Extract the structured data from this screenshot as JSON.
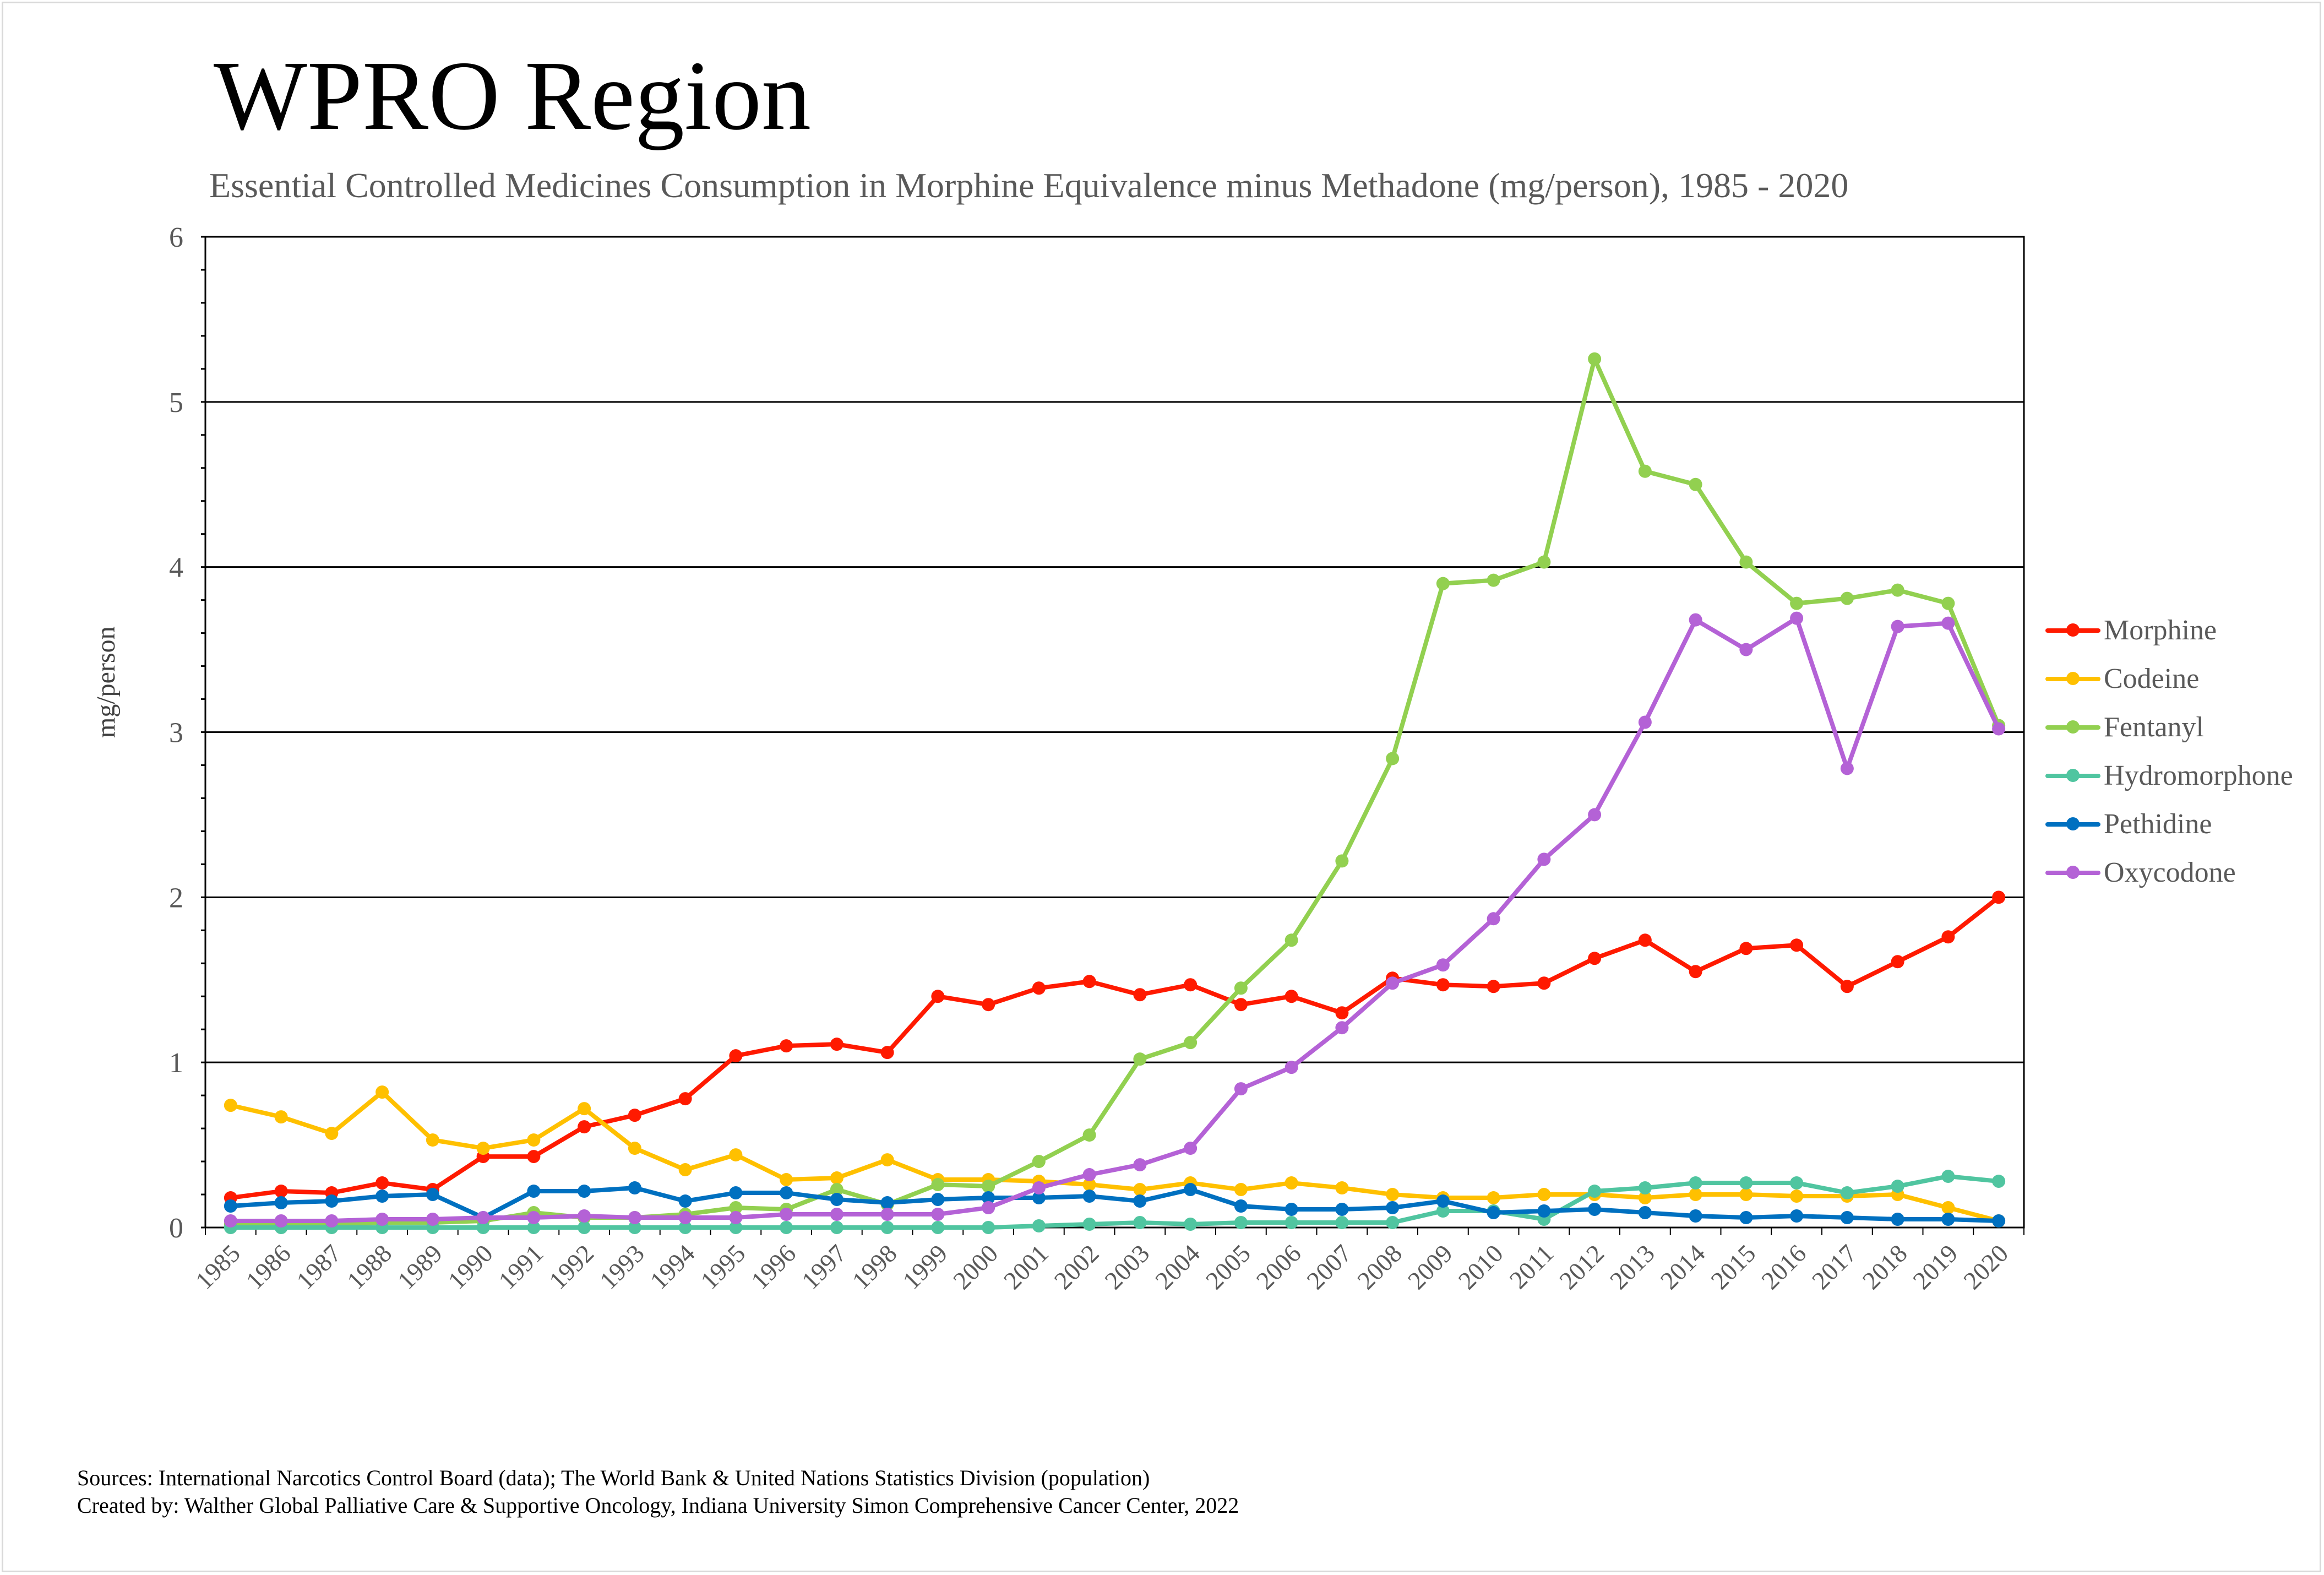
{
  "header": {
    "title": "WPRO Region",
    "subtitle": "Essential Controlled Medicines Consumption in Morphine Equivalence minus Methadone (mg/person), 1985 - 2020"
  },
  "footer": {
    "sources": "Sources: International Narcotics Control Board (data); The World Bank & United Nations Statistics Division (population)",
    "created_by": "Created by: Walther Global Palliative Care & Supportive Oncology, Indiana University Simon Comprehensive Cancer Center, 2022"
  },
  "chart_data": {
    "type": "line",
    "title": "WPRO Region",
    "subtitle": "Essential Controlled Medicines Consumption in Morphine Equivalence minus Methadone (mg/person), 1985 - 2020",
    "xlabel": "",
    "ylabel": "mg/person",
    "ylim": [
      0,
      6
    ],
    "yticks": [
      "0",
      "1",
      "2",
      "3",
      "4",
      "5",
      "6"
    ],
    "grid": true,
    "legend_position": "right",
    "x": [
      "1985",
      "1986",
      "1987",
      "1988",
      "1989",
      "1990",
      "1991",
      "1992",
      "1993",
      "1994",
      "1995",
      "1996",
      "1997",
      "1998",
      "1999",
      "2000",
      "2001",
      "2002",
      "2003",
      "2004",
      "2005",
      "2006",
      "2007",
      "2008",
      "2009",
      "2010",
      "2011",
      "2012",
      "2013",
      "2014",
      "2015",
      "2016",
      "2017",
      "2018",
      "2019",
      "2020"
    ],
    "series": [
      {
        "name": "Morphine",
        "color": "#ff1a00",
        "values": [
          0.18,
          0.22,
          0.21,
          0.27,
          0.23,
          0.43,
          0.43,
          0.61,
          0.68,
          0.78,
          1.04,
          1.1,
          1.11,
          1.06,
          1.4,
          1.35,
          1.45,
          1.49,
          1.41,
          1.47,
          1.35,
          1.4,
          1.3,
          1.51,
          1.47,
          1.46,
          1.48,
          1.63,
          1.74,
          1.55,
          1.69,
          1.71,
          1.46,
          1.61,
          1.76,
          2.0
        ]
      },
      {
        "name": "Codeine",
        "color": "#ffc000",
        "values": [
          0.74,
          0.67,
          0.57,
          0.82,
          0.53,
          0.48,
          0.53,
          0.72,
          0.48,
          0.35,
          0.44,
          0.29,
          0.3,
          0.41,
          0.29,
          0.29,
          0.28,
          0.26,
          0.23,
          0.27,
          0.23,
          0.27,
          0.24,
          0.2,
          0.18,
          0.18,
          0.2,
          0.2,
          0.18,
          0.2,
          0.2,
          0.19,
          0.19,
          0.2,
          0.12,
          0.04
        ]
      },
      {
        "name": "Fentanyl",
        "color": "#92d050",
        "values": [
          0.02,
          0.02,
          0.02,
          0.03,
          0.03,
          0.04,
          0.09,
          0.06,
          0.06,
          0.08,
          0.12,
          0.11,
          0.23,
          0.14,
          0.26,
          0.25,
          0.4,
          0.56,
          1.02,
          1.12,
          1.45,
          1.74,
          2.22,
          2.84,
          3.9,
          3.92,
          4.03,
          5.26,
          4.58,
          4.5,
          4.03,
          3.78,
          3.81,
          3.86,
          3.78,
          3.04
        ]
      },
      {
        "name": "Hydromorphone",
        "color": "#50c5a0",
        "values": [
          0.0,
          0.0,
          0.0,
          0.0,
          0.0,
          0.0,
          0.0,
          0.0,
          0.0,
          0.0,
          0.0,
          0.0,
          0.0,
          0.0,
          0.0,
          0.0,
          0.01,
          0.02,
          0.03,
          0.02,
          0.03,
          0.03,
          0.03,
          0.03,
          0.1,
          0.1,
          0.05,
          0.22,
          0.24,
          0.27,
          0.27,
          0.27,
          0.21,
          0.25,
          0.31,
          0.28
        ]
      },
      {
        "name": "Pethidine",
        "color": "#0070c0",
        "values": [
          0.13,
          0.15,
          0.16,
          0.19,
          0.2,
          0.06,
          0.22,
          0.22,
          0.24,
          0.16,
          0.21,
          0.21,
          0.17,
          0.15,
          0.17,
          0.18,
          0.18,
          0.19,
          0.16,
          0.23,
          0.13,
          0.11,
          0.11,
          0.12,
          0.16,
          0.09,
          0.1,
          0.11,
          0.09,
          0.07,
          0.06,
          0.07,
          0.06,
          0.05,
          0.05,
          0.04
        ]
      },
      {
        "name": "Oxycodone",
        "color": "#b462d6",
        "values": [
          0.04,
          0.04,
          0.04,
          0.05,
          0.05,
          0.06,
          0.06,
          0.07,
          0.06,
          0.06,
          0.06,
          0.08,
          0.08,
          0.08,
          0.08,
          0.12,
          0.24,
          0.32,
          0.38,
          0.48,
          0.84,
          0.97,
          1.21,
          1.48,
          1.59,
          1.87,
          2.23,
          2.5,
          3.06,
          3.68,
          3.5,
          3.69,
          2.78,
          3.64,
          3.66,
          3.02
        ]
      }
    ]
  }
}
